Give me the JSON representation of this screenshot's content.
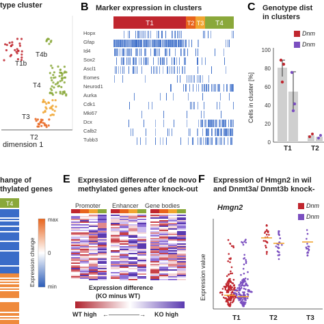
{
  "panel_a": {
    "title": "type cluster",
    "xlabel": "dimension 1",
    "clusters": [
      "T1b",
      "T4b",
      "T4",
      "T3",
      "T2"
    ]
  },
  "panel_b": {
    "letter": "B",
    "title": "Marker expression in clusters",
    "groups": [
      "T1",
      "T2",
      "T3",
      "T4"
    ],
    "genes": [
      "Hopx",
      "Gfap",
      "Id4",
      "Sox2",
      "Ascl1",
      "Eomes",
      "Neurod1",
      "Aurka",
      "Cdk1",
      "Mki67",
      "Dcx",
      "Calb2",
      "Tubb3"
    ]
  },
  "panel_c": {
    "letter": "C",
    "title_line1": "Genotype dist",
    "title_line2": "in clusters",
    "legend": [
      "Dnm",
      "Dnm"
    ],
    "ylabel": "Cells in cluster [%]",
    "yticks": [
      "0",
      "20",
      "40",
      "60",
      "80",
      "100"
    ],
    "xcats": [
      "T1",
      "T2"
    ]
  },
  "panel_d": {
    "line1": "hange of",
    "line2": "thylated genes",
    "col_label": "T4",
    "scale_label": "Expression change",
    "scale_max": "max",
    "scale_mid": "0",
    "scale_min": "min"
  },
  "panel_e": {
    "letter": "E",
    "title_line1": "Expression difference of de novo",
    "title_line2": "methylated genes after knock-out",
    "groups": [
      "Promoter",
      "Enhancer",
      "Gene bodies"
    ],
    "legend_title1": "Expression difference",
    "legend_title2": "(KO minus WT)",
    "left_label": "WT high",
    "right_label": "KO high"
  },
  "panel_f": {
    "letter": "F",
    "title_line1": "Expression of Hmgn2 in wil",
    "title_line2": "and Dnmt3a/ Dnmt3b knock-",
    "gene": "Hmgn2",
    "legend": [
      "Dnm",
      "Dnm"
    ],
    "ylabel": "Expression value",
    "xcats": [
      "T1",
      "T2",
      "T3"
    ]
  },
  "colors": {
    "t1": "#c0262e",
    "t2": "#e8641c",
    "t3": "#f0a430",
    "t4": "#8aa83a",
    "wt": "#c0262e",
    "ko": "#7b4fc0",
    "blue": "#3a6cc8",
    "gray_bar": "#cfcfcf"
  }
}
